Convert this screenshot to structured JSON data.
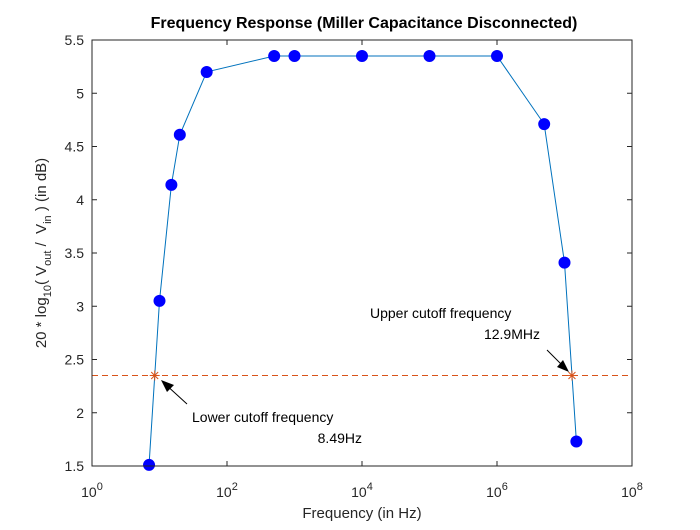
{
  "chart_data": {
    "type": "line",
    "title": "Frequency Response (Miller Capacitance Disconnected)",
    "xlabel": "Frequency (in Hz)",
    "ylabel": {
      "p1": "20 * log",
      "sub1": "10",
      "p2": "( V",
      "sub2": "out",
      "p3": " /  V",
      "sub3": "in",
      "p4": " ) (in dB)"
    },
    "xscale": "log",
    "xlim": [
      1,
      100000000
    ],
    "ylim": [
      1.5,
      5.5
    ],
    "xticks": [
      {
        "value": 1,
        "base": "10",
        "exp": "0"
      },
      {
        "value": 100,
        "base": "10",
        "exp": "2"
      },
      {
        "value": 10000,
        "base": "10",
        "exp": "4"
      },
      {
        "value": 1000000,
        "base": "10",
        "exp": "6"
      },
      {
        "value": 100000000,
        "base": "10",
        "exp": "8"
      }
    ],
    "yticks": [
      {
        "value": 1.5,
        "label": "1.5"
      },
      {
        "value": 2,
        "label": "2"
      },
      {
        "value": 2.5,
        "label": "2.5"
      },
      {
        "value": 3,
        "label": "3"
      },
      {
        "value": 3.5,
        "label": "3.5"
      },
      {
        "value": 4,
        "label": "4"
      },
      {
        "value": 4.5,
        "label": "4.5"
      },
      {
        "value": 5,
        "label": "5"
      },
      {
        "value": 5.5,
        "label": "5.5"
      }
    ],
    "grid": false,
    "series": [
      {
        "color": "#0072BD",
        "marker_color": "#0000FF",
        "x": [
          7,
          10,
          15,
          20,
          50,
          500,
          1000,
          10000,
          100000,
          1000000,
          5000000,
          10000000,
          15000000
        ],
        "y": [
          1.51,
          3.05,
          4.14,
          4.61,
          5.2,
          5.35,
          5.35,
          5.35,
          5.35,
          5.35,
          4.71,
          3.41,
          1.73
        ]
      }
    ],
    "reference_line": {
      "y": 2.35,
      "color": "#D95319",
      "style": "dashed"
    },
    "cutoff_points": [
      {
        "x": 8.49,
        "y": 2.35
      },
      {
        "x": 12900000,
        "y": 2.35
      }
    ],
    "annotations": [
      {
        "line1": "Lower cutoff frequency",
        "line2": "8.49Hz"
      },
      {
        "line1": "Upper cutoff frequency",
        "line2": "12.9MHz"
      }
    ],
    "colors": {
      "axes": "#262626",
      "ref": "#D95319",
      "line": "#0072BD",
      "marker": "#0000FF"
    }
  }
}
